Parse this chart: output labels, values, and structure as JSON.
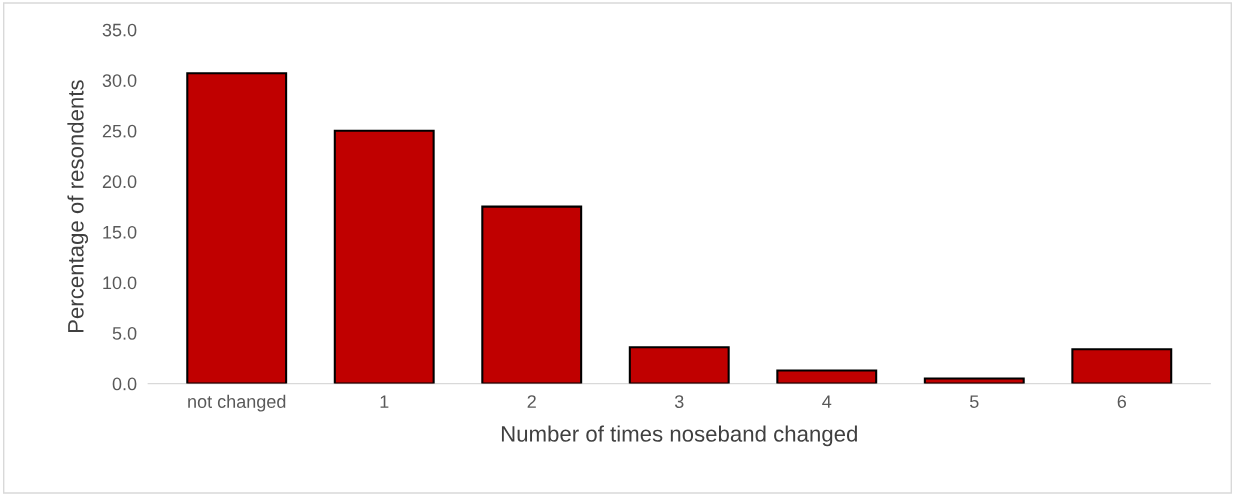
{
  "chart_data": {
    "type": "bar",
    "xlabel": "Number of times noseband changed",
    "ylabel": "Percentage of resondents",
    "categories": [
      "not changed",
      "1",
      "2",
      "3",
      "4",
      "5",
      "6"
    ],
    "values": [
      30.7,
      25.0,
      17.5,
      3.6,
      1.3,
      0.5,
      3.4
    ],
    "color": "#c00000",
    "ylim": [
      0,
      35
    ],
    "yticks": [
      {
        "value": 0,
        "label": "0.0"
      },
      {
        "value": 5,
        "label": "5.0"
      },
      {
        "value": 10,
        "label": "10.0"
      },
      {
        "value": 15,
        "label": "15.0"
      },
      {
        "value": 20,
        "label": "20.0"
      },
      {
        "value": 25,
        "label": "25.0"
      },
      {
        "value": 30,
        "label": "30.0"
      },
      {
        "value": 35,
        "label": "35.0"
      }
    ],
    "grid": false
  }
}
